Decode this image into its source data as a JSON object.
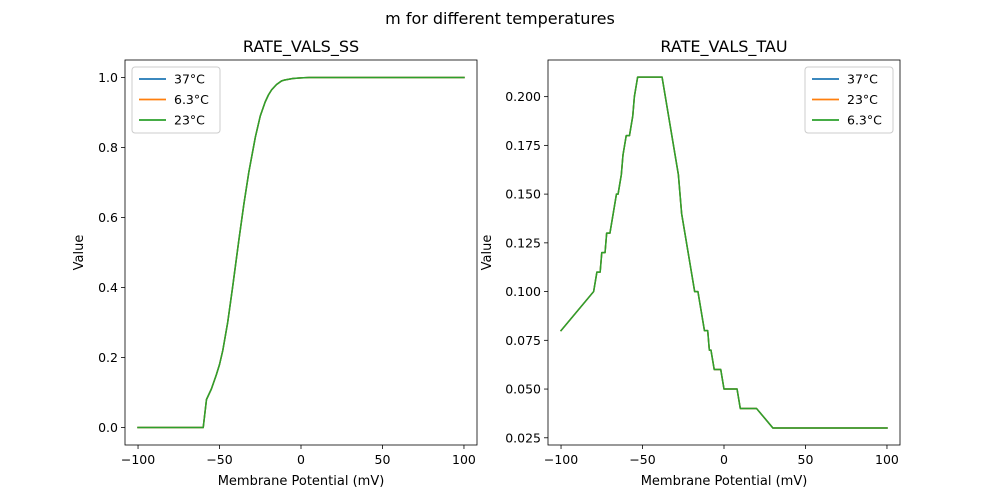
{
  "suptitle": "m for different temperatures",
  "colors": {
    "blue": "#1f77b4",
    "orange": "#ff7f0e",
    "green": "#2ca02c"
  },
  "chart_data": [
    {
      "type": "line",
      "title": "RATE_VALS_SS",
      "xlabel": "Membrane Potential (mV)",
      "ylabel": "Value",
      "xlim": [
        -108,
        108
      ],
      "ylim": [
        -0.05,
        1.05
      ],
      "xticks": [
        -100,
        -50,
        0,
        50,
        100
      ],
      "yticks": [
        0.0,
        0.2,
        0.4,
        0.6,
        0.8,
        1.0
      ],
      "ytick_labels": [
        "0.0",
        "0.2",
        "0.4",
        "0.6",
        "0.8",
        "1.0"
      ],
      "legend_position": "top-left",
      "grid": false,
      "series": [
        {
          "name": "37°C",
          "color": "#1f77b4",
          "x": [
            -100,
            -80,
            -60,
            -58,
            -57,
            -55,
            -52,
            -50,
            -48,
            -45,
            -42,
            -40,
            -38,
            -35,
            -32,
            -30,
            -28,
            -25,
            -22,
            -20,
            -18,
            -15,
            -12,
            -10,
            -5,
            0,
            5,
            10,
            20,
            30,
            50,
            70,
            100
          ],
          "y": [
            0,
            0,
            0,
            0.08,
            0.09,
            0.11,
            0.15,
            0.18,
            0.22,
            0.3,
            0.4,
            0.47,
            0.54,
            0.64,
            0.73,
            0.78,
            0.83,
            0.89,
            0.93,
            0.95,
            0.965,
            0.98,
            0.99,
            0.993,
            0.997,
            0.999,
            1,
            1,
            1,
            1,
            1,
            1,
            1
          ]
        },
        {
          "name": "6.3°C",
          "color": "#ff7f0e",
          "x": [
            -100,
            -80,
            -60,
            -58,
            -57,
            -55,
            -52,
            -50,
            -48,
            -45,
            -42,
            -40,
            -38,
            -35,
            -32,
            -30,
            -28,
            -25,
            -22,
            -20,
            -18,
            -15,
            -12,
            -10,
            -5,
            0,
            5,
            10,
            20,
            30,
            50,
            70,
            100
          ],
          "y": [
            0,
            0,
            0,
            0.08,
            0.09,
            0.11,
            0.15,
            0.18,
            0.22,
            0.3,
            0.4,
            0.47,
            0.54,
            0.64,
            0.73,
            0.78,
            0.83,
            0.89,
            0.93,
            0.95,
            0.965,
            0.98,
            0.99,
            0.993,
            0.997,
            0.999,
            1,
            1,
            1,
            1,
            1,
            1,
            1
          ]
        },
        {
          "name": "23°C",
          "color": "#2ca02c",
          "x": [
            -100,
            -80,
            -60,
            -58,
            -57,
            -55,
            -52,
            -50,
            -48,
            -45,
            -42,
            -40,
            -38,
            -35,
            -32,
            -30,
            -28,
            -25,
            -22,
            -20,
            -18,
            -15,
            -12,
            -10,
            -5,
            0,
            5,
            10,
            20,
            30,
            50,
            70,
            100
          ],
          "y": [
            0,
            0,
            0,
            0.08,
            0.09,
            0.11,
            0.15,
            0.18,
            0.22,
            0.3,
            0.4,
            0.47,
            0.54,
            0.64,
            0.73,
            0.78,
            0.83,
            0.89,
            0.93,
            0.95,
            0.965,
            0.98,
            0.99,
            0.993,
            0.997,
            0.999,
            1,
            1,
            1,
            1,
            1,
            1,
            1
          ]
        }
      ]
    },
    {
      "type": "line",
      "title": "RATE_VALS_TAU",
      "xlabel": "Membrane Potential (mV)",
      "ylabel": "Value",
      "xlim": [
        -108,
        108
      ],
      "ylim": [
        0.0213,
        0.2188
      ],
      "xticks": [
        -100,
        -50,
        0,
        50,
        100
      ],
      "yticks": [
        0.025,
        0.05,
        0.075,
        0.1,
        0.125,
        0.15,
        0.175,
        0.2
      ],
      "ytick_labels": [
        "0.025",
        "0.050",
        "0.075",
        "0.100",
        "0.125",
        "0.150",
        "0.175",
        "0.200"
      ],
      "legend_position": "top-right",
      "grid": false,
      "series": [
        {
          "name": "37°C",
          "color": "#1f77b4",
          "x": [
            -100,
            -80,
            -78,
            -76,
            -75,
            -73,
            -72,
            -70,
            -68,
            -66,
            -65,
            -63,
            -62,
            -60,
            -58,
            -56,
            -55,
            -53,
            -52,
            -50,
            -48,
            -46,
            -44,
            -42,
            -40,
            -38,
            -36,
            -34,
            -32,
            -30,
            -28,
            -26,
            -24,
            -22,
            -20,
            -18,
            -16,
            -14,
            -12,
            -10,
            -9,
            -8,
            -6,
            -5,
            -4,
            -2,
            0,
            2,
            4,
            6,
            8,
            10,
            12,
            14,
            16,
            18,
            20,
            25,
            30,
            50,
            100
          ],
          "y": [
            0.08,
            0.1,
            0.11,
            0.11,
            0.12,
            0.12,
            0.13,
            0.13,
            0.14,
            0.15,
            0.15,
            0.16,
            0.17,
            0.18,
            0.18,
            0.19,
            0.2,
            0.21,
            0.21,
            0.21,
            0.21,
            0.21,
            0.21,
            0.21,
            0.21,
            0.21,
            0.2,
            0.19,
            0.18,
            0.17,
            0.16,
            0.14,
            0.13,
            0.12,
            0.11,
            0.1,
            0.1,
            0.09,
            0.08,
            0.08,
            0.07,
            0.07,
            0.06,
            0.06,
            0.06,
            0.06,
            0.05,
            0.05,
            0.05,
            0.05,
            0.05,
            0.04,
            0.04,
            0.04,
            0.04,
            0.04,
            0.04,
            0.035,
            0.03,
            0.03,
            0.03
          ]
        },
        {
          "name": "23°C",
          "color": "#ff7f0e",
          "x": [
            -100,
            -80,
            -78,
            -76,
            -75,
            -73,
            -72,
            -70,
            -68,
            -66,
            -65,
            -63,
            -62,
            -60,
            -58,
            -56,
            -55,
            -53,
            -52,
            -50,
            -48,
            -46,
            -44,
            -42,
            -40,
            -38,
            -36,
            -34,
            -32,
            -30,
            -28,
            -26,
            -24,
            -22,
            -20,
            -18,
            -16,
            -14,
            -12,
            -10,
            -9,
            -8,
            -6,
            -5,
            -4,
            -2,
            0,
            2,
            4,
            6,
            8,
            10,
            12,
            14,
            16,
            18,
            20,
            25,
            30,
            50,
            100
          ],
          "y": [
            0.08,
            0.1,
            0.11,
            0.11,
            0.12,
            0.12,
            0.13,
            0.13,
            0.14,
            0.15,
            0.15,
            0.16,
            0.17,
            0.18,
            0.18,
            0.19,
            0.2,
            0.21,
            0.21,
            0.21,
            0.21,
            0.21,
            0.21,
            0.21,
            0.21,
            0.21,
            0.2,
            0.19,
            0.18,
            0.17,
            0.16,
            0.14,
            0.13,
            0.12,
            0.11,
            0.1,
            0.1,
            0.09,
            0.08,
            0.08,
            0.07,
            0.07,
            0.06,
            0.06,
            0.06,
            0.06,
            0.05,
            0.05,
            0.05,
            0.05,
            0.05,
            0.04,
            0.04,
            0.04,
            0.04,
            0.04,
            0.04,
            0.035,
            0.03,
            0.03,
            0.03
          ]
        },
        {
          "name": "6.3°C",
          "color": "#2ca02c",
          "x": [
            -100,
            -80,
            -78,
            -76,
            -75,
            -73,
            -72,
            -70,
            -68,
            -66,
            -65,
            -63,
            -62,
            -60,
            -58,
            -56,
            -55,
            -53,
            -52,
            -50,
            -48,
            -46,
            -44,
            -42,
            -40,
            -38,
            -36,
            -34,
            -32,
            -30,
            -28,
            -26,
            -24,
            -22,
            -20,
            -18,
            -16,
            -14,
            -12,
            -10,
            -9,
            -8,
            -6,
            -5,
            -4,
            -2,
            0,
            2,
            4,
            6,
            8,
            10,
            12,
            14,
            16,
            18,
            20,
            25,
            30,
            50,
            100
          ],
          "y": [
            0.08,
            0.1,
            0.11,
            0.11,
            0.12,
            0.12,
            0.13,
            0.13,
            0.14,
            0.15,
            0.15,
            0.16,
            0.17,
            0.18,
            0.18,
            0.19,
            0.2,
            0.21,
            0.21,
            0.21,
            0.21,
            0.21,
            0.21,
            0.21,
            0.21,
            0.21,
            0.2,
            0.19,
            0.18,
            0.17,
            0.16,
            0.14,
            0.13,
            0.12,
            0.11,
            0.1,
            0.1,
            0.09,
            0.08,
            0.08,
            0.07,
            0.07,
            0.06,
            0.06,
            0.06,
            0.06,
            0.05,
            0.05,
            0.05,
            0.05,
            0.05,
            0.04,
            0.04,
            0.04,
            0.04,
            0.04,
            0.04,
            0.035,
            0.03,
            0.03,
            0.03
          ]
        }
      ]
    }
  ]
}
